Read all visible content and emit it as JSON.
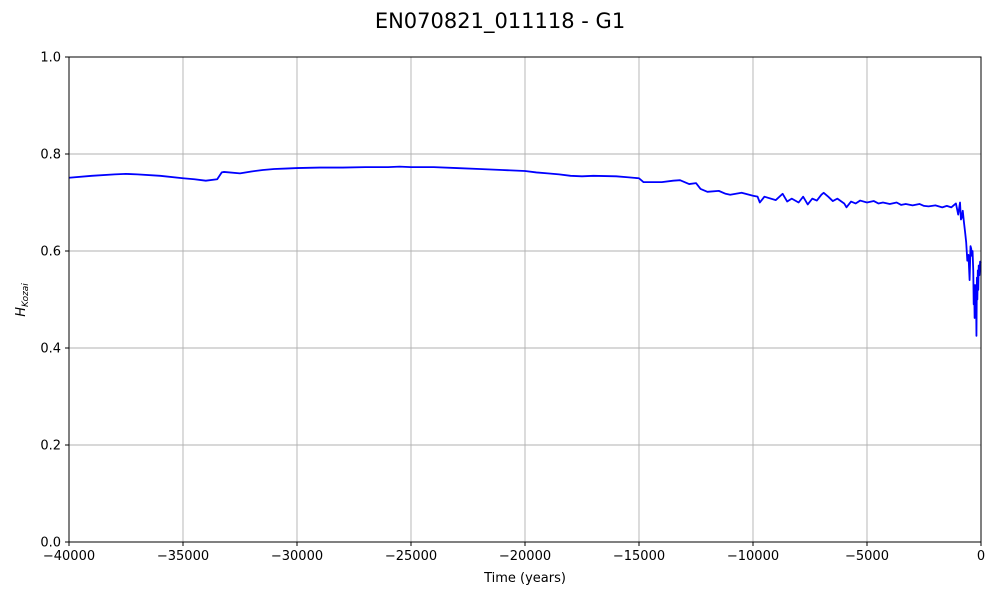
{
  "chart_data": {
    "type": "line",
    "title": "EN070821_011118 - G1",
    "xlabel": "Time (years)",
    "ylabel_main": "H",
    "ylabel_sub": "Kozai",
    "xlim": [
      -40000,
      0
    ],
    "ylim": [
      0.0,
      1.0
    ],
    "grid": true,
    "x_ticks": [
      -40000,
      -35000,
      -30000,
      -25000,
      -20000,
      -15000,
      -10000,
      -5000,
      0
    ],
    "x_tick_labels": [
      "−40000",
      "−35000",
      "−30000",
      "−25000",
      "−20000",
      "−15000",
      "−10000",
      "−5000",
      "0"
    ],
    "y_ticks": [
      0.0,
      0.2,
      0.4,
      0.6,
      0.8,
      1.0
    ],
    "y_tick_labels": [
      "0.0",
      "0.2",
      "0.4",
      "0.6",
      "0.8",
      "1.0"
    ],
    "line_color": "#0000ff",
    "grid_color": "#b0b0b0",
    "series": [
      {
        "x": [
          -40000,
          -39000,
          -38000,
          -37500,
          -37000,
          -36000,
          -35000,
          -34500,
          -34000,
          -33500,
          -33300,
          -33200,
          -32500,
          -32000,
          -31500,
          -31000,
          -30500,
          -30000,
          -29000,
          -28000,
          -27000,
          -26000,
          -25500,
          -25000,
          -24000,
          -23000,
          -22000,
          -21000,
          -20000,
          -19500,
          -19000,
          -18500,
          -18000,
          -17500,
          -17000,
          -16000,
          -15500,
          -15000,
          -14800,
          -14000,
          -13500,
          -13200,
          -12800,
          -12500,
          -12300,
          -12000,
          -11500,
          -11200,
          -11000,
          -10500,
          -10000,
          -9800,
          -9700,
          -9500,
          -9000,
          -8700,
          -8500,
          -8300,
          -8000,
          -7800,
          -7600,
          -7400,
          -7200,
          -7000,
          -6900,
          -6700,
          -6500,
          -6300,
          -6000,
          -5900,
          -5700,
          -5500,
          -5300,
          -5000,
          -4700,
          -4500,
          -4300,
          -4000,
          -3700,
          -3500,
          -3300,
          -3000,
          -2700,
          -2500,
          -2300,
          -2000,
          -1700,
          -1500,
          -1300,
          -1100,
          -1000,
          -920,
          -880,
          -850,
          -800,
          -750,
          -700,
          -650,
          -600,
          -550,
          -500,
          -460,
          -430,
          -400,
          -370,
          -340,
          -320,
          -300,
          -280,
          -260,
          -240,
          -220,
          -200,
          -180,
          -160,
          -140,
          -120,
          -100,
          -70,
          -40,
          0
        ],
        "y": [
          0.751,
          0.755,
          0.758,
          0.759,
          0.758,
          0.755,
          0.75,
          0.748,
          0.745,
          0.748,
          0.762,
          0.763,
          0.76,
          0.764,
          0.767,
          0.769,
          0.77,
          0.771,
          0.772,
          0.772,
          0.773,
          0.773,
          0.774,
          0.773,
          0.773,
          0.771,
          0.769,
          0.767,
          0.765,
          0.762,
          0.76,
          0.758,
          0.755,
          0.754,
          0.755,
          0.754,
          0.752,
          0.75,
          0.742,
          0.742,
          0.745,
          0.746,
          0.738,
          0.74,
          0.728,
          0.722,
          0.724,
          0.718,
          0.716,
          0.72,
          0.714,
          0.712,
          0.7,
          0.712,
          0.705,
          0.718,
          0.702,
          0.708,
          0.7,
          0.712,
          0.696,
          0.708,
          0.704,
          0.716,
          0.72,
          0.712,
          0.703,
          0.708,
          0.698,
          0.69,
          0.702,
          0.698,
          0.704,
          0.7,
          0.703,
          0.698,
          0.7,
          0.697,
          0.7,
          0.695,
          0.697,
          0.694,
          0.697,
          0.693,
          0.692,
          0.694,
          0.69,
          0.693,
          0.69,
          0.698,
          0.675,
          0.7,
          0.665,
          0.668,
          0.683,
          0.66,
          0.64,
          0.618,
          0.58,
          0.592,
          0.54,
          0.61,
          0.605,
          0.59,
          0.6,
          0.56,
          0.49,
          0.53,
          0.462,
          0.5,
          0.475,
          0.53,
          0.425,
          0.545,
          0.5,
          0.56,
          0.52,
          0.57,
          0.55,
          0.578,
          0.575
        ]
      }
    ]
  }
}
